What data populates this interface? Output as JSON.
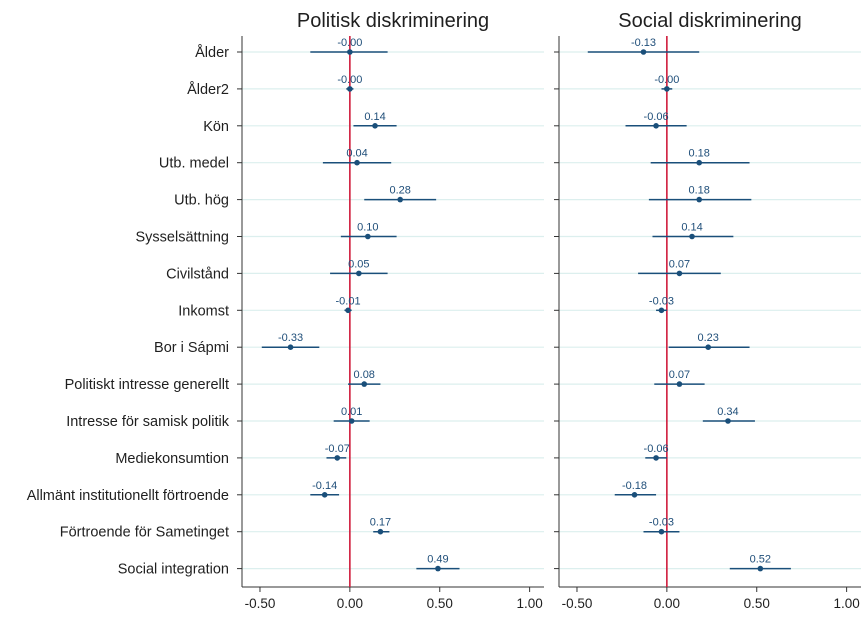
{
  "colors": {
    "point": "#1a4f7a",
    "ci": "#1a4f7a",
    "zero_line": "#d01c3c",
    "grid": "#dcefee",
    "axis": "#333333",
    "label": "#1f4e79"
  },
  "chart_data": {
    "type": "dot-whisker",
    "variables": [
      "Ålder",
      "Ålder2",
      "Kön",
      "Utb. medel",
      "Utb. hög",
      "Sysselsättning",
      "Civilstånd",
      "Inkomst",
      "Bor i Sápmi",
      "Politiskt intresse generellt",
      "Intresse för samisk politik",
      "Mediekonsumtion",
      "Allmänt institutionellt förtroende",
      "Förtroende för Sametinget",
      "Social integration"
    ],
    "xlim": [
      -0.6,
      1.08
    ],
    "xticks": [
      -0.5,
      0.0,
      0.5,
      1.0
    ],
    "xtick_labels": [
      "-0.50",
      "0.00",
      "0.50",
      "1.00"
    ],
    "reference_line": 0,
    "grid": true,
    "panels": [
      {
        "title": "Politisk diskriminering",
        "estimates": [
          -0.0,
          -0.0,
          0.14,
          0.04,
          0.28,
          0.1,
          0.05,
          -0.01,
          -0.33,
          0.08,
          0.01,
          -0.07,
          -0.14,
          0.17,
          0.49
        ],
        "labels": [
          "-0.00",
          "-0.00",
          "0.14",
          "0.04",
          "0.28",
          "0.10",
          "0.05",
          "-0.01",
          "-0.33",
          "0.08",
          "0.01",
          "-0.07",
          "-0.14",
          "0.17",
          "0.49"
        ],
        "ci_low": [
          -0.22,
          -0.02,
          0.02,
          -0.15,
          0.08,
          -0.05,
          -0.11,
          -0.03,
          -0.49,
          -0.01,
          -0.09,
          -0.13,
          -0.22,
          0.13,
          0.37
        ],
        "ci_high": [
          0.21,
          0.02,
          0.26,
          0.23,
          0.48,
          0.26,
          0.21,
          0.01,
          -0.17,
          0.17,
          0.11,
          -0.02,
          -0.06,
          0.22,
          0.61
        ]
      },
      {
        "title": "Social diskriminering",
        "estimates": [
          -0.13,
          -0.0,
          -0.06,
          0.18,
          0.18,
          0.14,
          0.07,
          -0.03,
          0.23,
          0.07,
          0.34,
          -0.06,
          -0.18,
          -0.03,
          0.52
        ],
        "labels": [
          "-0.13",
          "-0.00",
          "-0.06",
          "0.18",
          "0.18",
          "0.14",
          "0.07",
          "-0.03",
          "0.23",
          "0.07",
          "0.34",
          "-0.06",
          "-0.18",
          "-0.03",
          "0.52"
        ],
        "ci_low": [
          -0.44,
          -0.03,
          -0.23,
          -0.09,
          -0.1,
          -0.08,
          -0.16,
          -0.06,
          0.01,
          -0.07,
          0.2,
          -0.12,
          -0.29,
          -0.13,
          0.35
        ],
        "ci_high": [
          0.18,
          0.03,
          0.11,
          0.46,
          0.47,
          0.37,
          0.3,
          0.0,
          0.46,
          0.21,
          0.49,
          0.0,
          -0.06,
          0.07,
          0.69
        ]
      }
    ]
  }
}
